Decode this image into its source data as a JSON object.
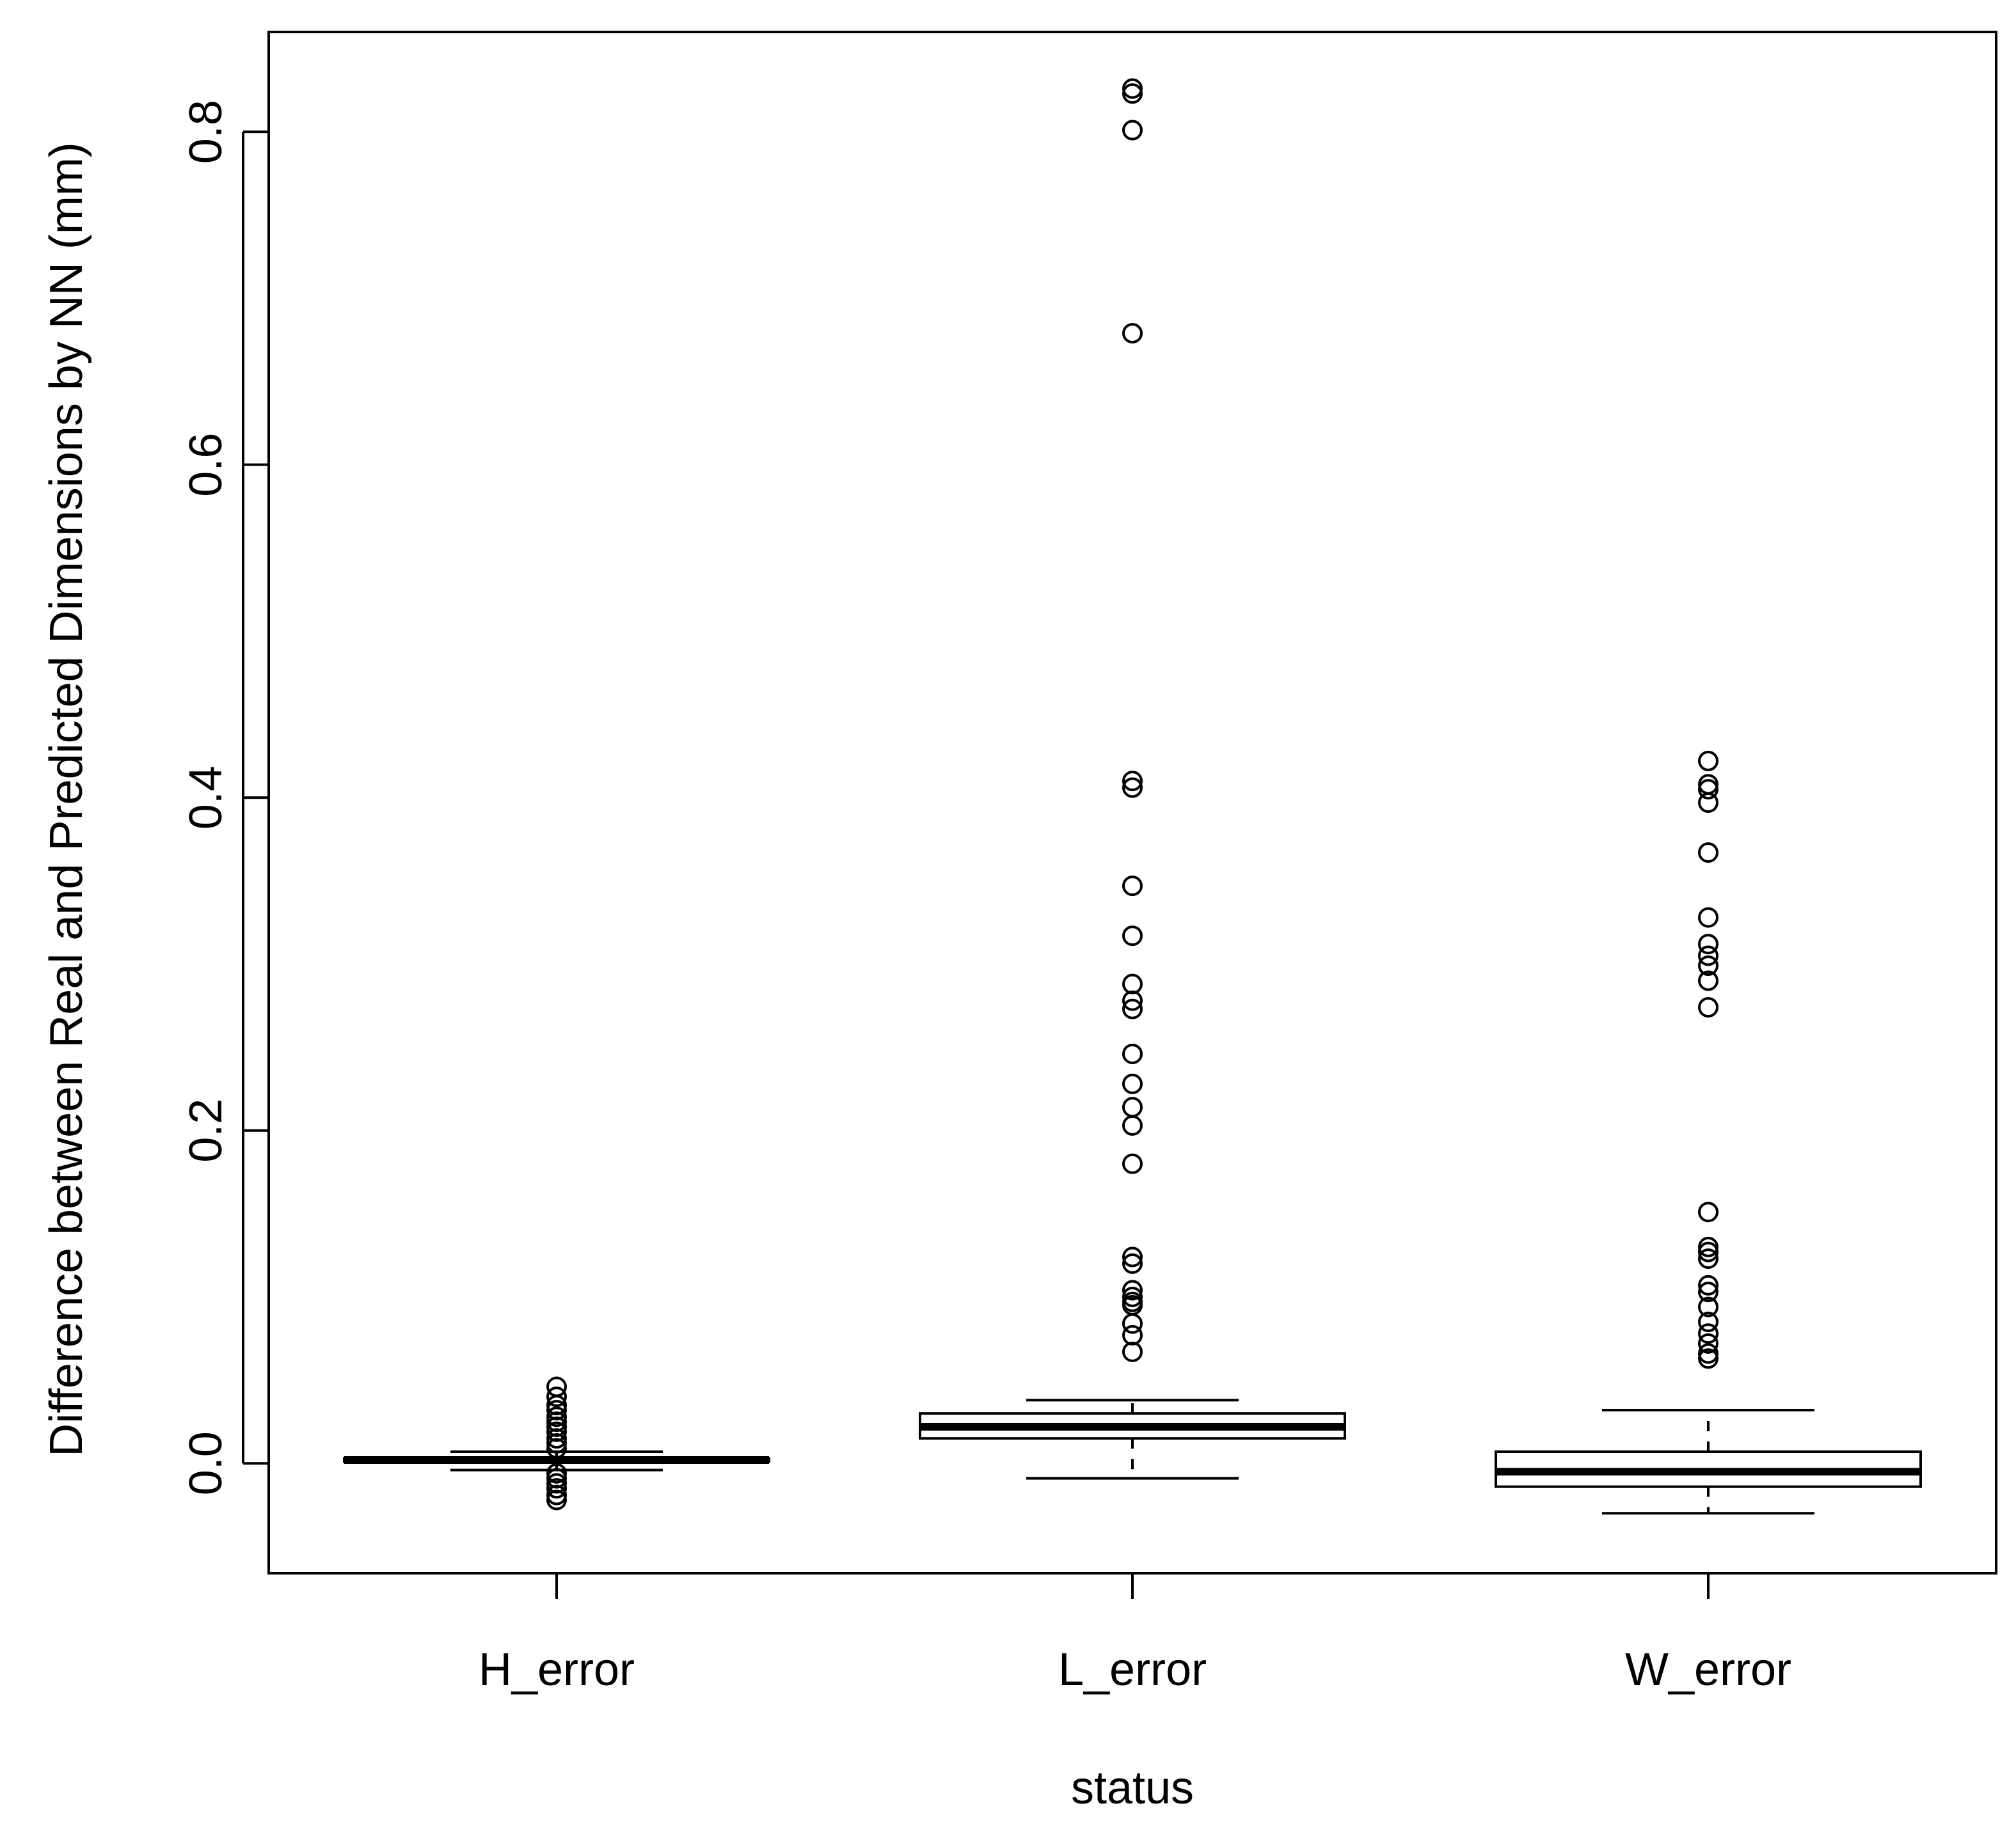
{
  "chart_data": {
    "type": "boxplot",
    "xlabel": "status",
    "ylabel": "Difference between Real and Predicted Dimensions by NN (mm)",
    "ylim": [
      -0.066,
      0.86
    ],
    "yticks": [
      {
        "value": 0.0,
        "label": "0.0"
      },
      {
        "value": 0.2,
        "label": "0.2"
      },
      {
        "value": 0.4,
        "label": "0.4"
      },
      {
        "value": 0.6,
        "label": "0.6"
      },
      {
        "value": 0.8,
        "label": "0.8"
      }
    ],
    "grid": false,
    "legend": "none",
    "categories": [
      "H_error",
      "L_error",
      "W_error"
    ],
    "boxes": [
      {
        "name": "H_error",
        "whisker_low": -0.004,
        "q1": 0.001,
        "median": 0.002,
        "q3": 0.003,
        "whisker_high": 0.007,
        "outliers": [
          0.046,
          0.04,
          0.035,
          0.032,
          0.028,
          0.025,
          0.022,
          0.019,
          0.015,
          0.012,
          0.009,
          -0.006,
          -0.009,
          -0.012,
          -0.015,
          -0.019,
          -0.022
        ]
      },
      {
        "name": "L_error",
        "whisker_low": -0.009,
        "q1": 0.015,
        "median": 0.022,
        "q3": 0.03,
        "whisker_high": 0.038,
        "outliers": [
          0.826,
          0.823,
          0.801,
          0.679,
          0.41,
          0.406,
          0.347,
          0.317,
          0.288,
          0.278,
          0.273,
          0.246,
          0.228,
          0.214,
          0.203,
          0.18,
          0.124,
          0.12,
          0.104,
          0.1,
          0.097,
          0.095,
          0.084,
          0.077,
          0.067
        ]
      },
      {
        "name": "W_error",
        "whisker_low": -0.03,
        "q1": -0.014,
        "median": -0.005,
        "q3": 0.007,
        "whisker_high": 0.032,
        "outliers": [
          0.422,
          0.408,
          0.405,
          0.397,
          0.367,
          0.328,
          0.312,
          0.305,
          0.299,
          0.29,
          0.274,
          0.151,
          0.13,
          0.127,
          0.123,
          0.107,
          0.103,
          0.094,
          0.085,
          0.078,
          0.072,
          0.066,
          0.063
        ]
      }
    ]
  }
}
